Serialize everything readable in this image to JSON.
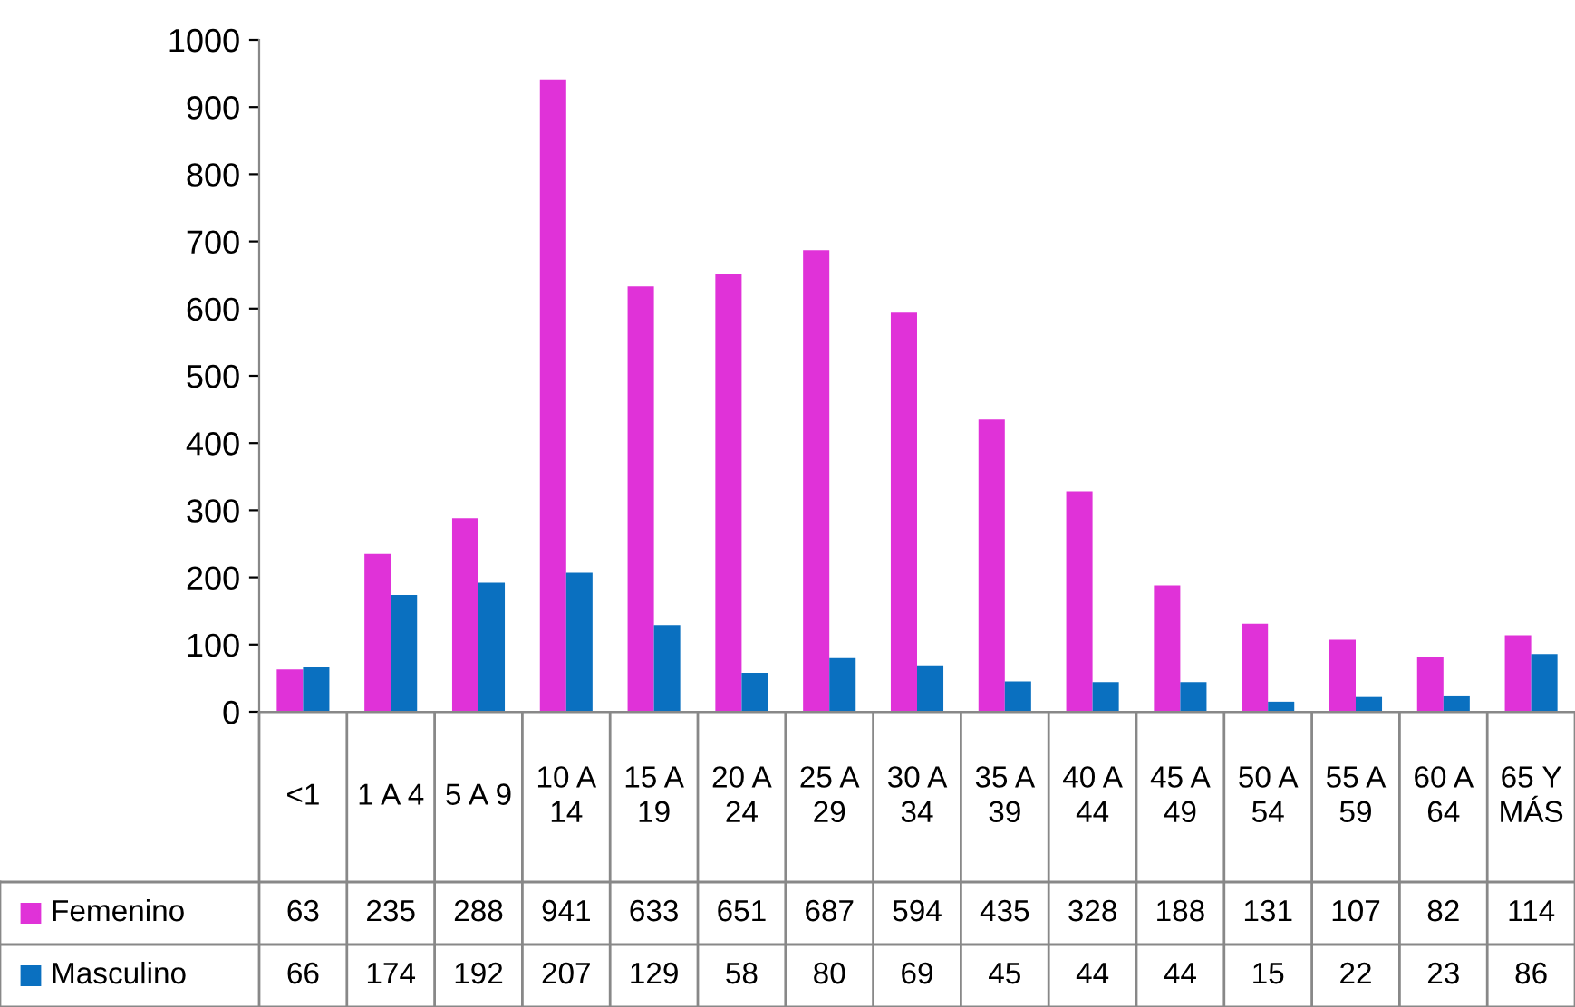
{
  "chart_data": {
    "type": "bar",
    "categories": [
      "<1",
      "1 A 4",
      "5 A 9",
      "10 A 14",
      "15 A 19",
      "20 A 24",
      "25 A 29",
      "30 A 34",
      "35 A 39",
      "40 A 44",
      "45 A 49",
      "50 A 54",
      "55 A 59",
      "60 A 64",
      "65 Y MÁS"
    ],
    "series": [
      {
        "name": "Femenino",
        "color": "#e032d8",
        "values": [
          63,
          235,
          288,
          941,
          633,
          651,
          687,
          594,
          435,
          328,
          188,
          131,
          107,
          82,
          114
        ]
      },
      {
        "name": "Masculino",
        "color": "#0a70c0",
        "values": [
          66,
          174,
          192,
          207,
          129,
          58,
          80,
          69,
          45,
          44,
          44,
          15,
          22,
          23,
          86
        ]
      }
    ],
    "ylim": [
      0,
      1000
    ],
    "yticks": [
      0,
      100,
      200,
      300,
      400,
      500,
      600,
      700,
      800,
      900,
      1000
    ],
    "grid": false,
    "data_labels": true,
    "legend": "bottom"
  }
}
